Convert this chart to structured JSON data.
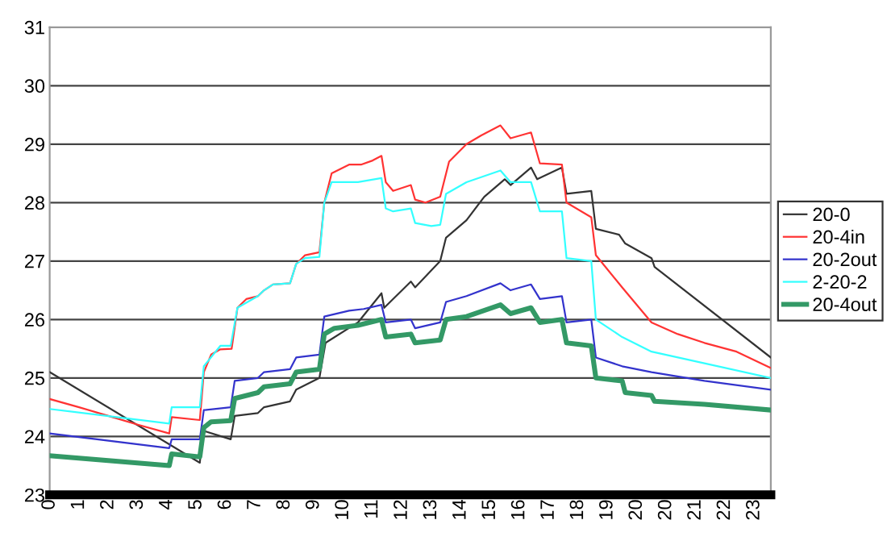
{
  "chart_data": {
    "type": "line",
    "legend": "right",
    "grid": "y",
    "line_style": "solid",
    "marker": "none",
    "xlim": [
      0.32,
      23.9
    ],
    "ylim": [
      23,
      31
    ],
    "yticks": [
      23,
      24,
      25,
      26,
      27,
      28,
      29,
      30,
      31
    ],
    "xticks": [
      {
        "value": 0.32,
        "label": "0"
      },
      {
        "value": 1.28,
        "label": "1"
      },
      {
        "value": 2.24,
        "label": "2"
      },
      {
        "value": 3.2,
        "label": "3"
      },
      {
        "value": 4.16,
        "label": "4"
      },
      {
        "value": 5.12,
        "label": "5"
      },
      {
        "value": 6.08,
        "label": "6"
      },
      {
        "value": 7.04,
        "label": "7"
      },
      {
        "value": 8.0,
        "label": "8"
      },
      {
        "value": 8.96,
        "label": "9"
      },
      {
        "value": 9.92,
        "label": "10"
      },
      {
        "value": 10.88,
        "label": "11"
      },
      {
        "value": 11.84,
        "label": "12"
      },
      {
        "value": 12.8,
        "label": "13"
      },
      {
        "value": 13.76,
        "label": "14"
      },
      {
        "value": 14.72,
        "label": "15"
      },
      {
        "value": 15.68,
        "label": "16"
      },
      {
        "value": 16.64,
        "label": "17"
      },
      {
        "value": 17.6,
        "label": "18"
      },
      {
        "value": 18.56,
        "label": "19"
      },
      {
        "value": 19.52,
        "label": "20"
      },
      {
        "value": 20.48,
        "label": "20"
      },
      {
        "value": 21.44,
        "label": "21"
      },
      {
        "value": 22.4,
        "label": "22"
      },
      {
        "value": 23.36,
        "label": "23"
      }
    ],
    "series": [
      {
        "name": "20-0",
        "color": "#333333",
        "x": [
          0.32,
          5.23,
          5.33,
          6.24,
          6.37,
          7.13,
          7.33,
          8.18,
          8.38,
          9.14,
          9.34,
          10.4,
          11.17,
          11.26,
          12.13,
          12.27,
          13.09,
          13.28,
          13.95,
          14.53,
          15.2,
          15.39,
          16.06,
          16.26,
          17.07,
          17.22,
          18.03,
          18.18,
          18.94,
          19.14,
          20.0,
          20.1,
          23.9
        ],
        "values": [
          25.1,
          23.55,
          24.1,
          23.95,
          24.35,
          24.4,
          24.5,
          24.6,
          24.8,
          25.0,
          25.6,
          25.95,
          26.45,
          26.2,
          26.65,
          26.55,
          27.0,
          27.4,
          27.7,
          28.1,
          28.4,
          28.3,
          28.6,
          28.4,
          28.6,
          28.15,
          28.2,
          27.55,
          27.45,
          27.3,
          27.05,
          26.9,
          25.35
        ]
      },
      {
        "name": "20-4in",
        "color": "#ff3333",
        "x": [
          0.32,
          1.28,
          2.24,
          3.2,
          4.23,
          4.31,
          5.23,
          5.36,
          5.6,
          5.9,
          6.27,
          6.46,
          6.75,
          7.13,
          7.33,
          7.62,
          8.18,
          8.38,
          8.67,
          9.14,
          9.3,
          9.54,
          10.11,
          10.5,
          10.88,
          11.17,
          11.31,
          11.55,
          12.13,
          12.27,
          12.61,
          13.09,
          13.38,
          13.95,
          14.43,
          15.06,
          15.39,
          16.06,
          16.35,
          17.07,
          17.22,
          18.03,
          18.18,
          19.04,
          20.0,
          20.86,
          21.73,
          22.78,
          23.9
        ],
        "values": [
          24.64,
          24.5,
          24.35,
          24.2,
          24.05,
          24.33,
          24.28,
          25.1,
          25.4,
          25.49,
          25.5,
          26.2,
          26.35,
          26.4,
          26.5,
          26.6,
          26.62,
          26.95,
          27.1,
          27.15,
          28.0,
          28.5,
          28.65,
          28.65,
          28.72,
          28.8,
          28.35,
          28.2,
          28.3,
          28.05,
          28.0,
          28.1,
          28.7,
          29.0,
          29.15,
          29.32,
          29.1,
          29.2,
          28.67,
          28.65,
          28.0,
          27.75,
          27.1,
          26.55,
          25.95,
          25.75,
          25.6,
          25.45,
          25.17
        ]
      },
      {
        "name": "20-2out",
        "color": "#3333cc",
        "x": [
          0.32,
          4.23,
          4.31,
          5.23,
          5.36,
          6.24,
          6.37,
          7.13,
          7.33,
          8.18,
          8.38,
          9.14,
          9.3,
          10.11,
          10.59,
          11.17,
          11.31,
          12.13,
          12.27,
          13.09,
          13.28,
          13.95,
          15.06,
          15.39,
          16.06,
          16.35,
          17.07,
          17.22,
          18.03,
          18.18,
          19.04,
          20.0,
          21.73,
          23.9
        ],
        "values": [
          24.05,
          23.8,
          23.95,
          23.95,
          24.45,
          24.5,
          24.95,
          25.0,
          25.1,
          25.15,
          25.35,
          25.4,
          26.05,
          26.15,
          26.18,
          26.25,
          25.95,
          26.0,
          25.85,
          25.95,
          26.3,
          26.4,
          26.62,
          26.5,
          26.6,
          26.35,
          26.4,
          25.95,
          26.0,
          25.35,
          25.2,
          25.1,
          24.95,
          24.8
        ]
      },
      {
        "name": "2-20-2",
        "color": "#33ffff",
        "x": [
          0.32,
          4.23,
          4.31,
          5.23,
          5.36,
          5.9,
          6.24,
          6.46,
          7.13,
          7.33,
          7.62,
          8.18,
          8.38,
          8.67,
          9.14,
          9.3,
          9.54,
          10.4,
          11.17,
          11.31,
          11.55,
          12.13,
          12.27,
          12.8,
          13.09,
          13.28,
          13.95,
          15.06,
          15.39,
          16.06,
          16.35,
          17.07,
          17.22,
          18.03,
          18.18,
          19.04,
          20.0,
          21.73,
          23.9
        ],
        "values": [
          24.47,
          24.22,
          24.5,
          24.5,
          25.2,
          25.55,
          25.55,
          26.2,
          26.4,
          26.5,
          26.6,
          26.62,
          26.95,
          27.05,
          27.07,
          28.0,
          28.35,
          28.35,
          28.42,
          27.9,
          27.85,
          27.9,
          27.65,
          27.6,
          27.62,
          28.15,
          28.35,
          28.55,
          28.35,
          28.35,
          27.85,
          27.85,
          27.05,
          27.0,
          26.0,
          25.7,
          25.45,
          25.25,
          25.0
        ]
      },
      {
        "name": "20-4out",
        "color": "#339966",
        "x": [
          0.32,
          4.23,
          4.31,
          5.23,
          5.36,
          5.6,
          6.24,
          6.37,
          7.13,
          7.33,
          8.18,
          8.38,
          9.14,
          9.3,
          9.63,
          10.4,
          11.17,
          11.31,
          12.13,
          12.27,
          13.09,
          13.28,
          13.95,
          15.06,
          15.39,
          16.06,
          16.35,
          17.07,
          17.22,
          18.03,
          18.18,
          19.04,
          19.14,
          20.0,
          20.1,
          21.73,
          23.9
        ],
        "values": [
          23.67,
          23.5,
          23.7,
          23.65,
          24.15,
          24.25,
          24.27,
          24.65,
          24.75,
          24.85,
          24.9,
          25.1,
          25.15,
          25.75,
          25.85,
          25.9,
          26.0,
          25.7,
          25.75,
          25.6,
          25.65,
          26.0,
          26.05,
          26.25,
          26.1,
          26.2,
          25.95,
          26.0,
          25.6,
          25.55,
          25.0,
          24.95,
          24.75,
          24.7,
          24.6,
          24.55,
          24.45
        ]
      }
    ]
  }
}
